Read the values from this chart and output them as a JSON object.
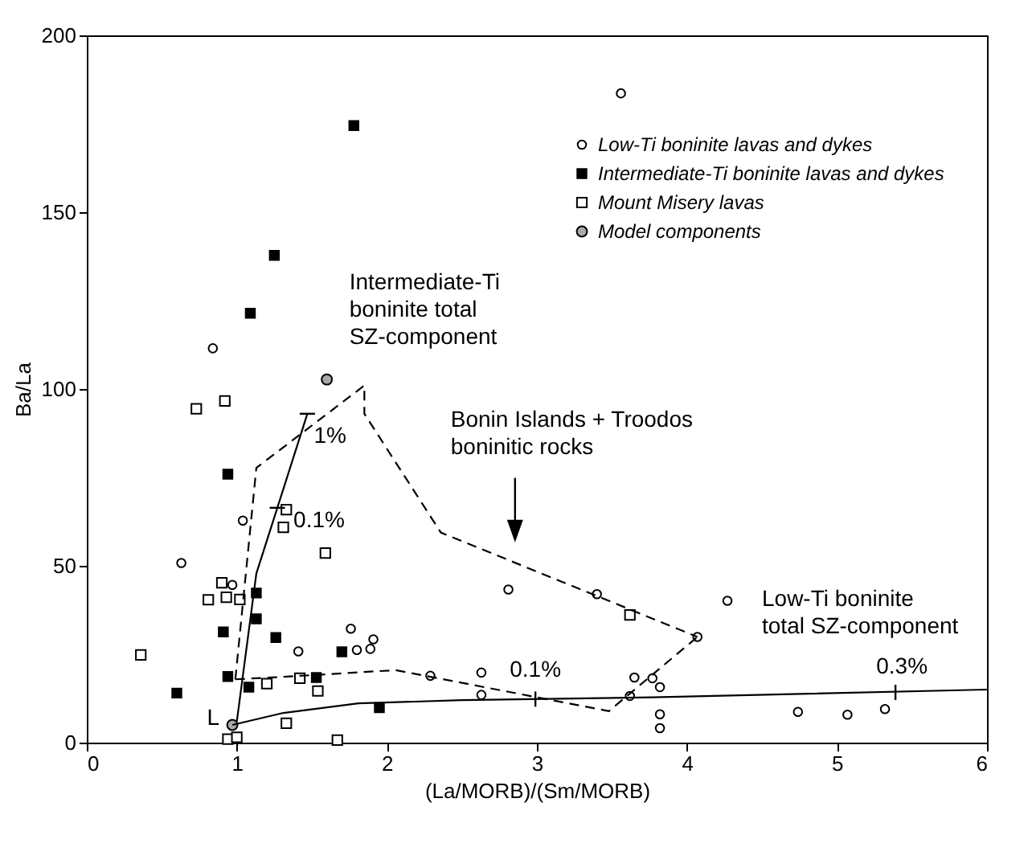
{
  "chart_data": {
    "type": "scatter",
    "xlabel": "(La/MORB)/(Sm/MORB)",
    "ylabel": "Ba/La",
    "xlim": [
      0,
      6
    ],
    "xticks": [
      0,
      1,
      2,
      3,
      4,
      5,
      6
    ],
    "ylim": [
      0,
      200
    ],
    "yticks": [
      0,
      50,
      100,
      150,
      200
    ],
    "legend": "top right",
    "series": [
      {
        "name": "Low-Ti boninite lavas and dykes",
        "marker": "circle",
        "color": "#ffffff",
        "x": [
          3.56,
          0.84,
          1.04,
          0.63,
          0.97,
          1.76,
          1.41,
          1.8,
          1.89,
          1.91,
          2.29,
          2.63,
          2.63,
          2.81,
          3.4,
          3.65,
          3.77,
          3.82,
          3.62,
          3.82,
          3.82,
          4.07,
          4.27,
          4.74,
          5.07,
          5.32
        ],
        "values": [
          183.6,
          111.5,
          62.8,
          50.8,
          44.6,
          32.2,
          25.8,
          26.2,
          26.5,
          29.2,
          18.9,
          19.8,
          13.5,
          43.3,
          42.0,
          18.4,
          18.2,
          15.7,
          13.2,
          8.0,
          4.1,
          29.9,
          40.1,
          8.7,
          7.9,
          9.5
        ]
      },
      {
        "name": "Intermediate-Ti boninite lavas and dykes",
        "marker": "square",
        "color": "#000000",
        "x": [
          1.78,
          1.25,
          1.09,
          0.94,
          1.13,
          1.13,
          0.91,
          1.26,
          1.7,
          0.94,
          0.6,
          1.08,
          1.53,
          1.95
        ],
        "values": [
          174.5,
          137.8,
          121.4,
          75.9,
          42.3,
          35.0,
          31.3,
          29.7,
          25.7,
          18.7,
          14.0,
          15.7,
          18.4,
          9.9
        ]
      },
      {
        "name": "Mount Misery lavas",
        "marker": "square",
        "color": "#ffffff",
        "x": [
          0.92,
          0.73,
          1.33,
          1.31,
          1.59,
          0.9,
          0.93,
          1.02,
          0.81,
          0.36,
          1.42,
          1.54,
          1.33,
          1.67,
          3.62,
          1.2,
          0.94,
          1.0
        ],
        "values": [
          96.6,
          94.4,
          65.9,
          60.9,
          53.6,
          45.2,
          41.1,
          40.5,
          40.4,
          24.8,
          18.2,
          14.6,
          5.5,
          0.7,
          36.1,
          16.7,
          1.0,
          1.5
        ]
      },
      {
        "name": "Model components",
        "marker": "circle",
        "color": "#a8a8a8",
        "x": [
          1.6,
          0.97
        ],
        "values": [
          102.7,
          5.0
        ]
      },
      {
        "type": "line",
        "line_style": "dashed",
        "color": "#000000",
        "x": [
          0.99,
          1.13,
          1.85,
          1.85,
          2.36,
          4.07
        ],
        "values": [
          17.9,
          77.7,
          101,
          93,
          59.4,
          29.9
        ]
      },
      {
        "type": "line",
        "line_style": "dashed",
        "color": "#000000",
        "x": [
          0.99,
          1.31,
          2.06,
          3.48,
          4.07
        ],
        "values": [
          17.9,
          18.6,
          20.5,
          8.9,
          29.9
        ]
      },
      {
        "type": "line",
        "line_style": "solid",
        "color": "#000000",
        "x": [
          1.0,
          1.13,
          1.27,
          1.47
        ],
        "values": [
          6,
          47.8,
          66.4,
          93.0
        ]
      },
      {
        "type": "line",
        "line_style": "solid",
        "color": "#000000",
        "x": [
          0.97,
          1.31,
          1.81,
          2.5,
          3.77,
          6.0
        ],
        "values": [
          5.0,
          8.4,
          11.1,
          12.0,
          12.8,
          15.0
        ]
      }
    ],
    "annotations": [
      {
        "text": "Intermediate-Ti\nboninite total\nSZ-component",
        "x": 1.6,
        "y": 102.7
      },
      "Bonin Islands + Troodos\nboninitic rocks",
      {
        "text": "Low-Ti boninite\ntotal SZ-component",
        "x": 6.0,
        "y": 15.0
      },
      {
        "text": "1%",
        "x": 1.47,
        "y": 93.0
      },
      {
        "text": "0.1%",
        "x": 1.27,
        "y": 66.4
      },
      {
        "text": "0.1%",
        "x": 2.99,
        "y": 12.3
      },
      {
        "text": "0.3%",
        "x": 5.39,
        "y": 14.2
      },
      {
        "text": "L",
        "x": 0.97,
        "y": 5.0
      }
    ]
  }
}
